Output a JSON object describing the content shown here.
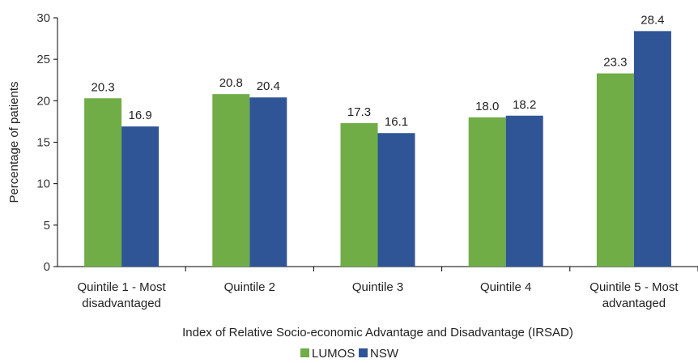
{
  "chart_data": {
    "type": "bar",
    "title": "",
    "xlabel": "Index of Relative Socio-economic Advantage and  Disadvantage (IRSAD)",
    "ylabel": "Percentage of patients",
    "ylim": [
      0,
      30
    ],
    "yticks": [
      0,
      5,
      10,
      15,
      20,
      25,
      30
    ],
    "categories": [
      [
        "Quintile 1 - Most",
        "disadvantaged"
      ],
      [
        "Quintile 2"
      ],
      [
        "Quintile 3"
      ],
      [
        "Quintile 4"
      ],
      [
        "Quintile 5 - Most",
        "advantaged"
      ]
    ],
    "series": [
      {
        "name": "LUMOS",
        "color": "#70AD47",
        "values": [
          20.3,
          20.8,
          17.3,
          18.0,
          23.3
        ],
        "labels": [
          "20.3",
          "20.8",
          "17.3",
          "18.0",
          "23.3"
        ]
      },
      {
        "name": "NSW",
        "color": "#2F5597",
        "values": [
          16.9,
          20.4,
          16.1,
          18.2,
          28.4
        ],
        "labels": [
          "16.9",
          "20.4",
          "16.1",
          "18.2",
          "28.4"
        ]
      }
    ],
    "grid": false,
    "legend": "bottom"
  }
}
